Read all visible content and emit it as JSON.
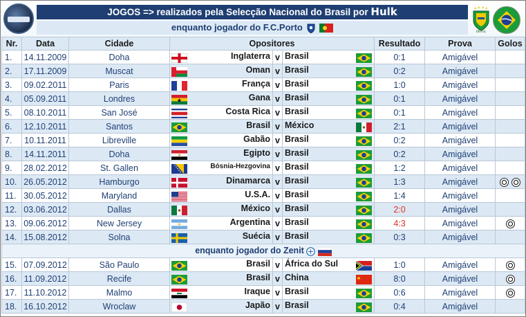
{
  "header": {
    "title_prefix": "JOGOS => realizados pela Selecção  Nacional do Brasil por ",
    "title_player": "Hulk",
    "subtitle_porto": "enquanto jogador do F.C.Porto",
    "subtitle_zenit": "enquanto jogador do Zenit"
  },
  "columns": {
    "nr": "Nr.",
    "data": "Data",
    "cidade": "Cidade",
    "opositores": "Opositores",
    "resultado": "Resultado",
    "prova": "Prova",
    "golos": "Golos"
  },
  "colors": {
    "banner": "#1f3f73",
    "alt_row": "#dce9f5",
    "text_blue": "#1f3f73",
    "red_result": "#e0301e"
  },
  "rows": [
    {
      "nr": "1.",
      "data": "14.11.2009",
      "cidade": "Doha",
      "home": "Inglaterra",
      "away": "Brasil",
      "home_flag": "england",
      "away_flag": "brazil",
      "resultado": "0:1",
      "prova": "Amigável",
      "golos": 0
    },
    {
      "nr": "2.",
      "data": "17.11.2009",
      "cidade": "Muscat",
      "home": "Oman",
      "away": "Brasil",
      "home_flag": "oman",
      "away_flag": "brazil",
      "resultado": "0:2",
      "prova": "Amigável",
      "golos": 0
    },
    {
      "nr": "3.",
      "data": "09.02.2011",
      "cidade": "Paris",
      "home": "França",
      "away": "Brasil",
      "home_flag": "france",
      "away_flag": "brazil",
      "resultado": "1:0",
      "prova": "Amigável",
      "golos": 0
    },
    {
      "nr": "4.",
      "data": "05.09.2011",
      "cidade": "Londres",
      "home": "Gana",
      "away": "Brasil",
      "home_flag": "ghana",
      "away_flag": "brazil",
      "resultado": "0:1",
      "prova": "Amigável",
      "golos": 0
    },
    {
      "nr": "5.",
      "data": "08.10.2011",
      "cidade": "San José",
      "home": "Costa Rica",
      "away": "Brasil",
      "home_flag": "costarica",
      "away_flag": "brazil",
      "resultado": "0:1",
      "prova": "Amigável",
      "golos": 0
    },
    {
      "nr": "6.",
      "data": "12.10.2011",
      "cidade": "Santos",
      "home": "Brasil",
      "away": "México",
      "home_flag": "brazil",
      "away_flag": "mexico",
      "resultado": "2:1",
      "prova": "Amigável",
      "golos": 0
    },
    {
      "nr": "7.",
      "data": "10.11.2011",
      "cidade": "Libreville",
      "home": "Gabão",
      "away": "Brasil",
      "home_flag": "gabon",
      "away_flag": "brazil",
      "resultado": "0:2",
      "prova": "Amigável",
      "golos": 0
    },
    {
      "nr": "8.",
      "data": "14.11.2011",
      "cidade": "Doha",
      "home": "Egipto",
      "away": "Brasil",
      "home_flag": "egypt",
      "away_flag": "brazil",
      "resultado": "0:2",
      "prova": "Amigável",
      "golos": 0
    },
    {
      "nr": "9.",
      "data": "28.02.2012",
      "cidade": "St. Gallen",
      "home": "Bósnia-Hezgovina",
      "away": "Brasil",
      "home_flag": "bosnia",
      "away_flag": "brazil",
      "resultado": "1:2",
      "prova": "Amigável",
      "golos": 0,
      "small": true
    },
    {
      "nr": "10.",
      "data": "26.05.2012",
      "cidade": "Hamburgo",
      "home": "Dinamarca",
      "away": "Brasil",
      "home_flag": "denmark",
      "away_flag": "brazil",
      "resultado": "1:3",
      "prova": "Amigável",
      "golos": 2
    },
    {
      "nr": "11.",
      "data": "30.05.2012",
      "cidade": "Maryland",
      "home": "U.S.A.",
      "away": "Brasil",
      "home_flag": "usa",
      "away_flag": "brazil",
      "resultado": "1:4",
      "prova": "Amigável",
      "golos": 0
    },
    {
      "nr": "12.",
      "data": "03.06.2012",
      "cidade": "Dallas",
      "home": "México",
      "away": "Brasil",
      "home_flag": "mexico",
      "away_flag": "brazil",
      "resultado": "2:0",
      "prova": "Amigável",
      "golos": 0,
      "red": true
    },
    {
      "nr": "13.",
      "data": "09.06.2012",
      "cidade": "New Jersey",
      "home": "Argentina",
      "away": "Brasil",
      "home_flag": "argentina",
      "away_flag": "brazil",
      "resultado": "4:3",
      "prova": "Amigável",
      "golos": 1,
      "red": true
    },
    {
      "nr": "14.",
      "data": "15.08.2012",
      "cidade": "Solna",
      "home": "Suécia",
      "away": "Brasil",
      "home_flag": "sweden",
      "away_flag": "brazil",
      "resultado": "0:3",
      "prova": "Amigável",
      "golos": 0
    },
    {
      "nr": "15.",
      "data": "07.09.2012",
      "cidade": "São Paulo",
      "home": "Brasil",
      "away": "África do Sul",
      "home_flag": "brazil",
      "away_flag": "southafrica",
      "resultado": "1:0",
      "prova": "Amigável",
      "golos": 1
    },
    {
      "nr": "16.",
      "data": "11.09.2012",
      "cidade": "Recife",
      "home": "Brasil",
      "away": "China",
      "home_flag": "brazil",
      "away_flag": "china",
      "resultado": "8:0",
      "prova": "Amigável",
      "golos": 1
    },
    {
      "nr": "17.",
      "data": "11.10.2012",
      "cidade": "Malmo",
      "home": "Iraque",
      "away": "Brasil",
      "home_flag": "iraq",
      "away_flag": "brazil",
      "resultado": "0:6",
      "prova": "Amigável",
      "golos": 1
    },
    {
      "nr": "18.",
      "data": "16.10.2012",
      "cidade": "Wroclaw",
      "home": "Japão",
      "away": "Brasil",
      "home_flag": "japan",
      "away_flag": "brazil",
      "resultado": "0:4",
      "prova": "Amigável",
      "golos": 0
    }
  ],
  "vs_label": "v",
  "icons": {
    "logo": "hulk-logo-icon",
    "crest": "cbf-crest-icon",
    "brazil_flag": "brazil-flag-icon",
    "porto_badge": "porto-badge-icon",
    "portugal_flag": "portugal-flag-icon",
    "zenit_badge": "zenit-badge-icon",
    "russia_flag": "russia-flag-icon",
    "goal": "football-icon"
  }
}
